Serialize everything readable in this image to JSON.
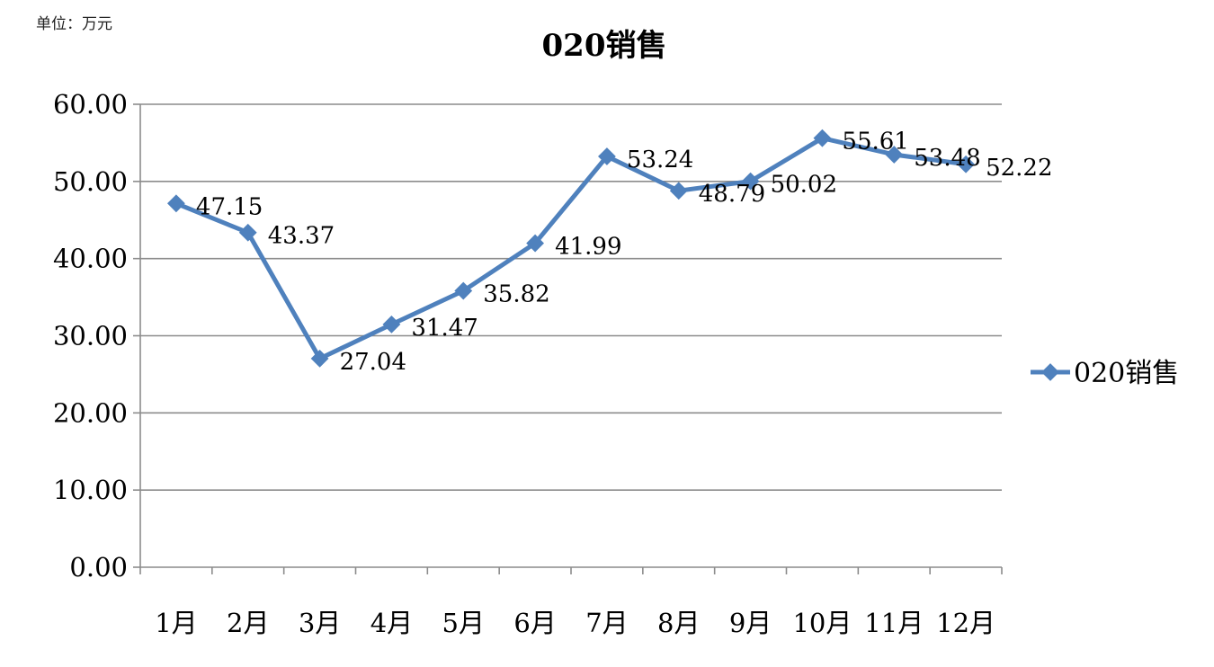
{
  "unit_label": "单位：万元",
  "chart_data": {
    "type": "line",
    "title": "020销售",
    "categories": [
      "1月",
      "2月",
      "3月",
      "4月",
      "5月",
      "6月",
      "7月",
      "8月",
      "9月",
      "10月",
      "11月",
      "12月"
    ],
    "series": [
      {
        "name": "020销售",
        "values": [
          47.15,
          43.37,
          27.04,
          31.47,
          35.82,
          41.99,
          53.24,
          48.79,
          50.02,
          55.61,
          53.48,
          52.22
        ],
        "data_labels": [
          "47.15",
          "43.37",
          "27.04",
          "31.47",
          "35.82",
          "41.99",
          "53.24",
          "48.79",
          "50.02",
          "55.61",
          "53.48",
          "52.22"
        ],
        "color": "#4F81BD",
        "marker": "diamond"
      }
    ],
    "ylim": [
      0,
      60
    ],
    "yticks": [
      0,
      10,
      20,
      30,
      40,
      50,
      60
    ],
    "ytick_labels": [
      "0.00",
      "10.00",
      "20.00",
      "30.00",
      "40.00",
      "50.00",
      "60.00"
    ],
    "xlabel": "",
    "ylabel": "",
    "grid": true,
    "grid_color": "#8C8C8C",
    "legend_position": "right"
  }
}
